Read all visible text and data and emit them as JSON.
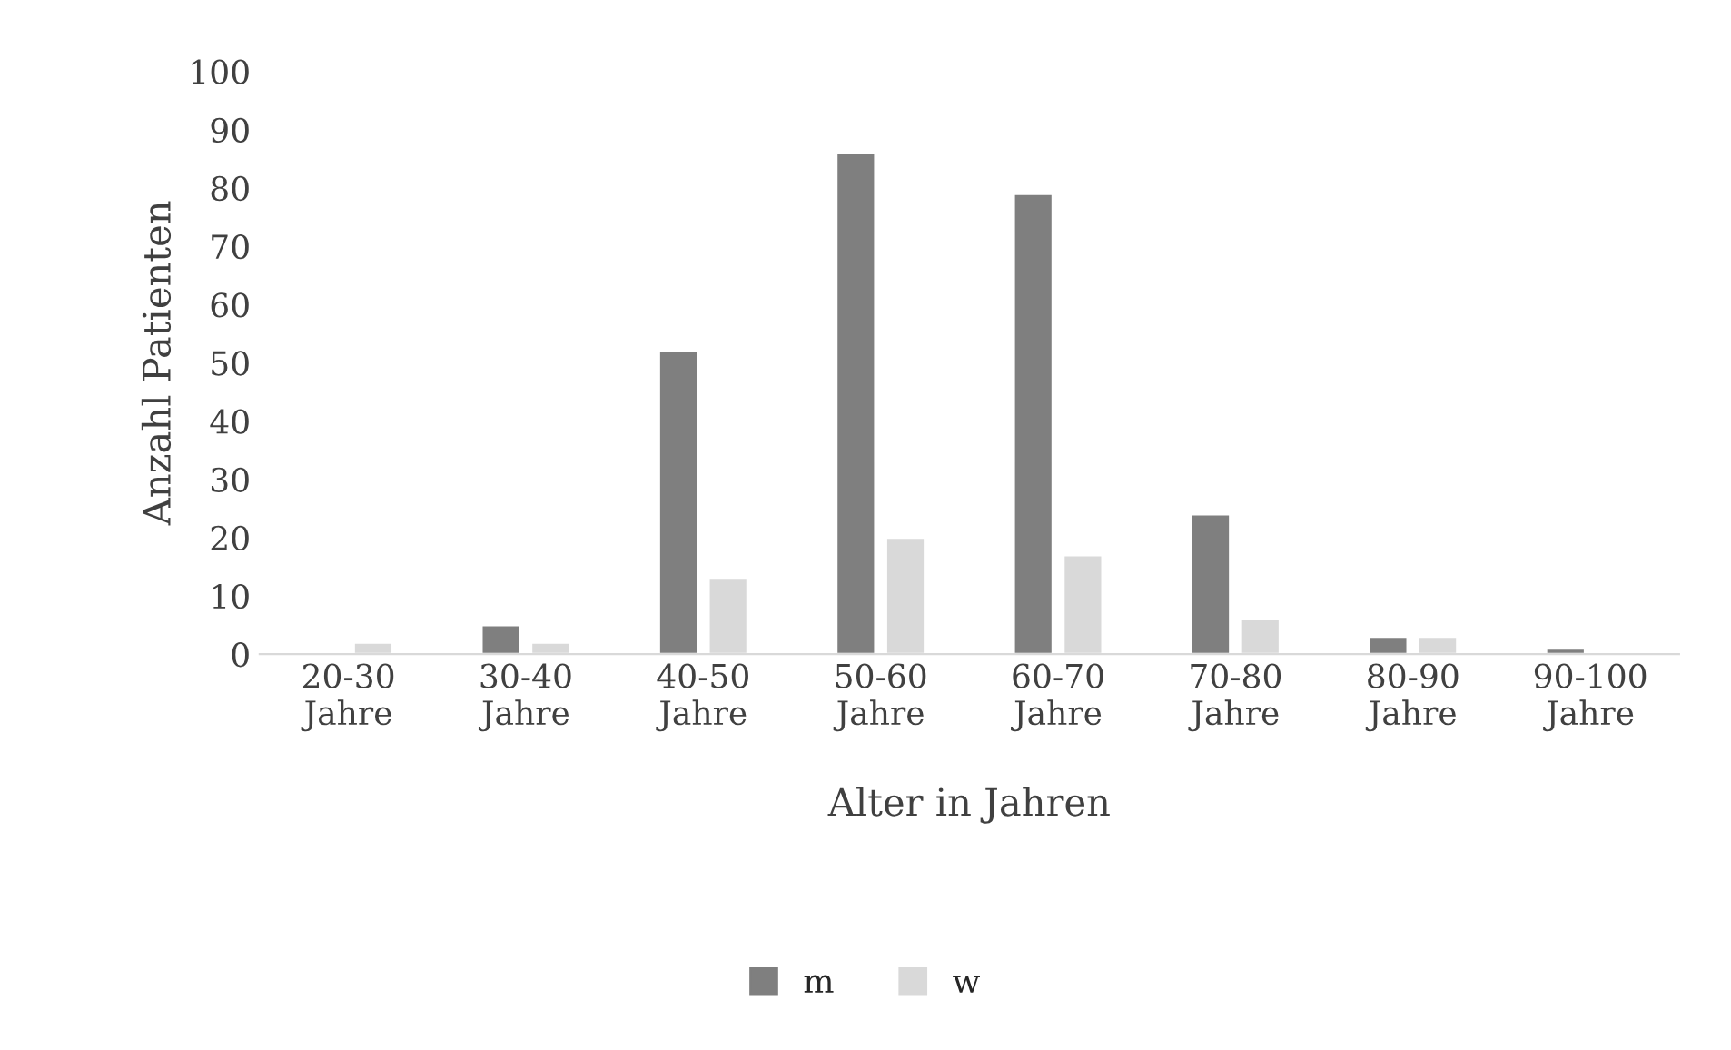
{
  "chart_data": {
    "type": "bar",
    "xlabel": "Alter in Jahren",
    "ylabel": "Anzahl Patienten",
    "categories": [
      "20-30\nJahre",
      "30-40\nJahre",
      "40-50\nJahre",
      "50-60\nJahre",
      "60-70\nJahre",
      "70-80\nJahre",
      "80-90\nJahre",
      "90-100\nJahre"
    ],
    "series": [
      {
        "name": "m",
        "color": "#7f7f7f",
        "values": [
          null,
          5,
          52,
          86,
          79,
          24,
          3,
          1
        ]
      },
      {
        "name": "w",
        "color": "#d9d9d9",
        "values": [
          2,
          2,
          13,
          20,
          17,
          6,
          3,
          null
        ]
      }
    ],
    "ylim": [
      0,
      100
    ],
    "yticks": [
      0,
      10,
      20,
      30,
      40,
      50,
      60,
      70,
      80,
      90,
      100
    ],
    "grid": false,
    "legend": "bottom"
  }
}
